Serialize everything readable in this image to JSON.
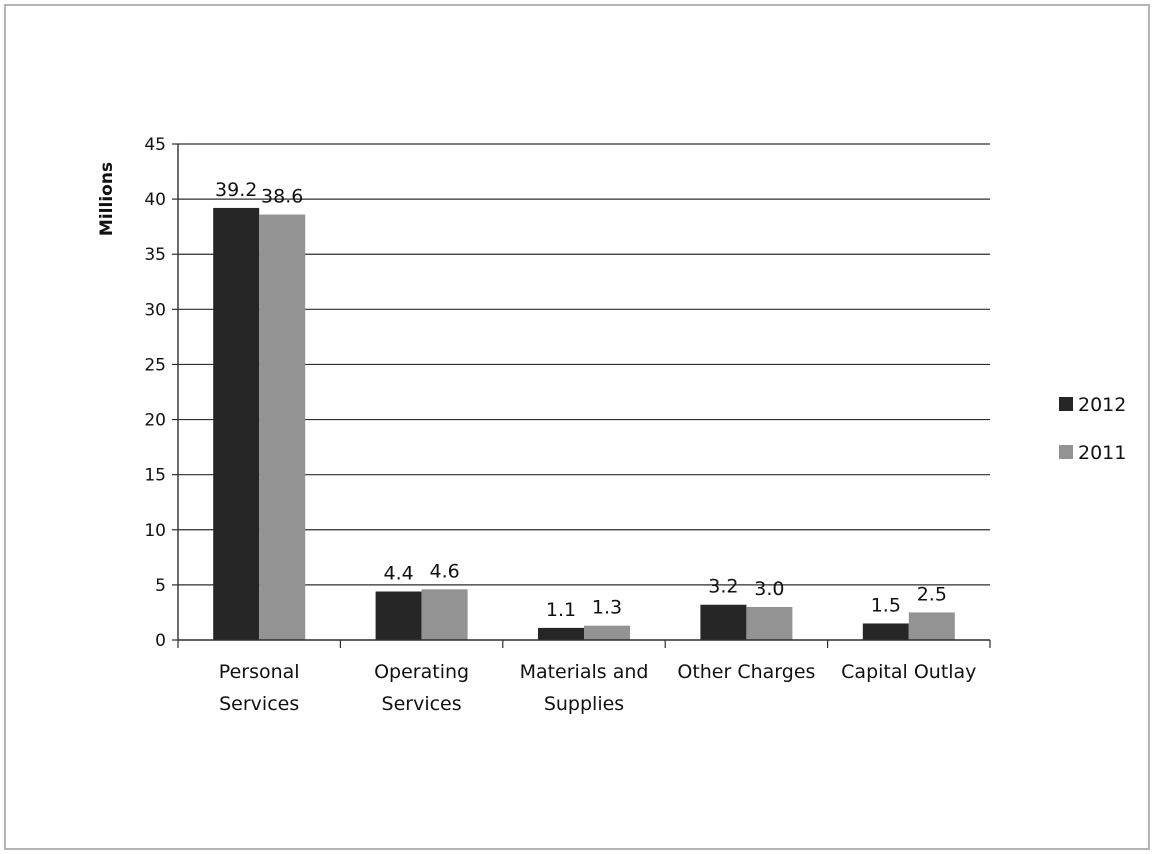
{
  "chart_data": {
    "type": "bar",
    "title": "",
    "xlabel": "",
    "ylabel": "Millions",
    "ylim": [
      0,
      45
    ],
    "ytick_step": 5,
    "grid": true,
    "legend_position": "right",
    "categories": [
      [
        "Personal",
        "Services"
      ],
      [
        "Operating",
        "Services"
      ],
      [
        "Materials and",
        "Supplies"
      ],
      [
        "Other Charges"
      ],
      [
        "Capital Outlay"
      ]
    ],
    "series": [
      {
        "name": "2012",
        "color": "#262626",
        "values": [
          39.2,
          4.4,
          1.1,
          3.2,
          1.5
        ],
        "value_labels": [
          "39.2",
          "4.4",
          "1.1",
          "3.2",
          "1.5"
        ]
      },
      {
        "name": "2011",
        "color": "#939393",
        "values": [
          38.6,
          4.6,
          1.3,
          3.0,
          2.5
        ],
        "value_labels": [
          "38.6",
          "4.6",
          "1.3",
          "3.0",
          "2.5"
        ]
      }
    ]
  }
}
